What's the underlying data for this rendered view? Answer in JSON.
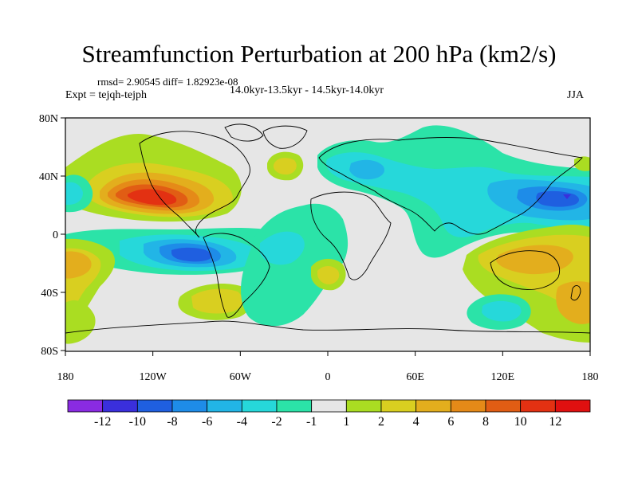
{
  "header": {
    "title": "Streamfunction Perturbation at 200 hPa (km2/s)",
    "stats": "rmsd= 2.90545 diff= 1.82923e-08",
    "experiment": "Expt = tejqh-tejph",
    "period": "14.0kyr-13.5kyr - 14.5kyr-14.0kyr",
    "season": "JJA"
  },
  "axes": {
    "lat_labels": [
      "80N",
      "40N",
      "0",
      "40S",
      "80S"
    ],
    "lon_labels": [
      "180",
      "120W",
      "60W",
      "0",
      "60E",
      "120E",
      "180"
    ]
  },
  "colorbar": {
    "labels": [
      "-12",
      "-10",
      "-8",
      "-6",
      "-4",
      "-2",
      "-1",
      "1",
      "2",
      "4",
      "6",
      "8",
      "10",
      "12"
    ],
    "colors": [
      "#8a2be2",
      "#3a2fdc",
      "#1f5fe0",
      "#1e8ce8",
      "#22b5e6",
      "#26d8da",
      "#2be3a8",
      "#e6e6e6",
      "#aadd22",
      "#d9cf20",
      "#e3ae1d",
      "#e58a18",
      "#e15d14",
      "#e33112",
      "#e01010"
    ]
  },
  "map_colors": {
    "background": "#e6e6e6",
    "neg_1": "#2be3a8",
    "neg_2": "#26d8da",
    "neg_4": "#22b5e6",
    "neg_6": "#1e8ce8",
    "neg_8": "#1f5fe0",
    "neg_10": "#3a2fdc",
    "pos_1": "#aadd22",
    "pos_2": "#d9cf20",
    "pos_4": "#e3ae1d",
    "pos_6": "#e58a18",
    "pos_8": "#e15d14",
    "pos_10": "#e33112"
  }
}
